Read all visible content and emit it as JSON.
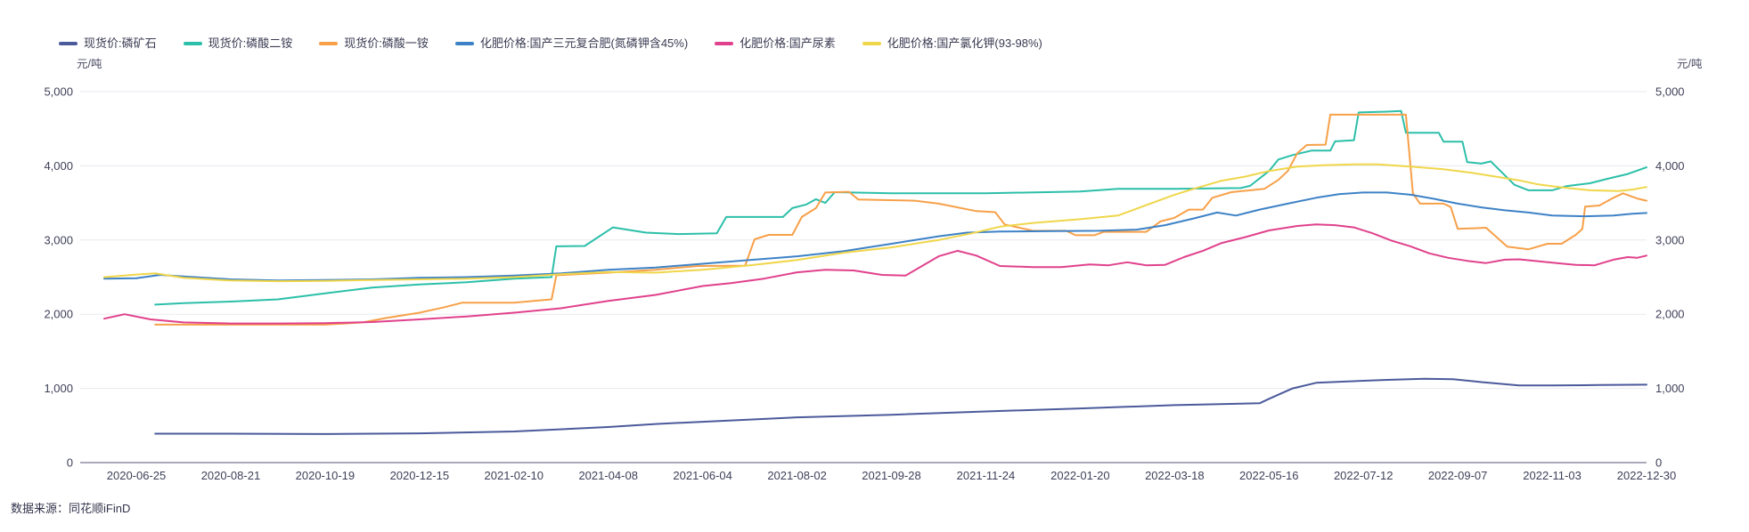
{
  "chart": {
    "unit_left": "元/吨",
    "unit_right": "元/吨",
    "footer": "数据来源：同花顺iFinD"
  },
  "chart_data": {
    "type": "line",
    "title": "",
    "xlabel": "",
    "ylabel": "元/吨",
    "grid": true,
    "legend_position": "top-left",
    "ylim": [
      0,
      5000
    ],
    "y_ticks": [
      0,
      1000,
      2000,
      3000,
      4000,
      5000
    ],
    "y_tick_labels": [
      "0",
      "1,000",
      "2,000",
      "3,000",
      "4,000",
      "5,000"
    ],
    "x_tick_labels": [
      "2020-06-25",
      "2020-08-21",
      "2020-10-19",
      "2020-12-15",
      "2021-02-10",
      "2021-04-08",
      "2021-06-04",
      "2021-08-02",
      "2021-09-28",
      "2021-11-24",
      "2022-01-20",
      "2022-03-18",
      "2022-05-16",
      "2022-07-12",
      "2022-09-07",
      "2022-11-03",
      "2022-12-30"
    ],
    "x_index_range": [
      0,
      32
    ],
    "note": "points are [x_index, price_yuan_per_ton]; x_index 0..32 maps linearly to dates 2020-06-25..2022-12-30, ticks at even indices",
    "series": [
      {
        "name": "现货价:磷矿石",
        "color": "#4b5a9b",
        "points": [
          [
            0.4,
            390
          ],
          [
            2,
            390
          ],
          [
            4,
            385
          ],
          [
            6,
            395
          ],
          [
            8,
            420
          ],
          [
            10,
            480
          ],
          [
            11,
            520
          ],
          [
            12,
            550
          ],
          [
            14,
            610
          ],
          [
            16,
            645
          ],
          [
            18,
            690
          ],
          [
            20,
            730
          ],
          [
            22,
            775
          ],
          [
            23.8,
            800
          ],
          [
            24,
            860
          ],
          [
            24.5,
            1000
          ],
          [
            25,
            1075
          ],
          [
            25.5,
            1090
          ],
          [
            26.5,
            1115
          ],
          [
            27.3,
            1130
          ],
          [
            27.9,
            1125
          ],
          [
            28.5,
            1085
          ],
          [
            29.3,
            1040
          ],
          [
            30,
            1040
          ],
          [
            31,
            1045
          ],
          [
            32,
            1050
          ]
        ]
      },
      {
        "name": "现货价:磷酸二铵",
        "color": "#2cbfa9",
        "points": [
          [
            0.4,
            2130
          ],
          [
            1,
            2150
          ],
          [
            2,
            2170
          ],
          [
            3,
            2200
          ],
          [
            4,
            2280
          ],
          [
            5,
            2360
          ],
          [
            6,
            2400
          ],
          [
            7,
            2430
          ],
          [
            8,
            2480
          ],
          [
            8.8,
            2500
          ],
          [
            8.9,
            2915
          ],
          [
            9.5,
            2920
          ],
          [
            10.1,
            3170
          ],
          [
            10.8,
            3100
          ],
          [
            11.5,
            3080
          ],
          [
            12.3,
            3090
          ],
          [
            12.5,
            3310
          ],
          [
            13.7,
            3310
          ],
          [
            13.9,
            3430
          ],
          [
            14.2,
            3480
          ],
          [
            14.4,
            3550
          ],
          [
            14.6,
            3500
          ],
          [
            14.8,
            3645
          ],
          [
            16,
            3630
          ],
          [
            18,
            3630
          ],
          [
            20,
            3655
          ],
          [
            20.8,
            3690
          ],
          [
            22,
            3690
          ],
          [
            23.4,
            3700
          ],
          [
            23.6,
            3730
          ],
          [
            24,
            3930
          ],
          [
            24.2,
            4085
          ],
          [
            24.5,
            4145
          ],
          [
            24.9,
            4205
          ],
          [
            25.3,
            4205
          ],
          [
            25.4,
            4330
          ],
          [
            25.8,
            4345
          ],
          [
            25.9,
            4720
          ],
          [
            26.5,
            4730
          ],
          [
            26.8,
            4740
          ],
          [
            26.9,
            4445
          ],
          [
            27.6,
            4445
          ],
          [
            27.7,
            4325
          ],
          [
            28.1,
            4325
          ],
          [
            28.2,
            4050
          ],
          [
            28.5,
            4030
          ],
          [
            28.7,
            4060
          ],
          [
            29.2,
            3745
          ],
          [
            29.5,
            3670
          ],
          [
            30,
            3670
          ],
          [
            30.3,
            3725
          ],
          [
            30.8,
            3765
          ],
          [
            31.2,
            3830
          ],
          [
            31.6,
            3890
          ],
          [
            32,
            3980
          ]
        ]
      },
      {
        "name": "现货价:磷酸一铵",
        "color": "#f7a049",
        "points": [
          [
            0.4,
            1860
          ],
          [
            2,
            1860
          ],
          [
            4,
            1860
          ],
          [
            4.8,
            1890
          ],
          [
            5.3,
            1950
          ],
          [
            6,
            2020
          ],
          [
            6.5,
            2090
          ],
          [
            6.9,
            2155
          ],
          [
            8,
            2155
          ],
          [
            8.8,
            2200
          ],
          [
            8.9,
            2525
          ],
          [
            10,
            2560
          ],
          [
            11,
            2600
          ],
          [
            11.9,
            2650
          ],
          [
            12.9,
            2655
          ],
          [
            13.1,
            3010
          ],
          [
            13.4,
            3070
          ],
          [
            13.9,
            3070
          ],
          [
            14.1,
            3310
          ],
          [
            14.4,
            3430
          ],
          [
            14.6,
            3640
          ],
          [
            15.1,
            3650
          ],
          [
            15.3,
            3545
          ],
          [
            16.5,
            3530
          ],
          [
            17,
            3490
          ],
          [
            17.8,
            3390
          ],
          [
            18.2,
            3375
          ],
          [
            18.4,
            3210
          ],
          [
            19,
            3125
          ],
          [
            19.7,
            3125
          ],
          [
            19.9,
            3065
          ],
          [
            20.3,
            3065
          ],
          [
            20.5,
            3110
          ],
          [
            21.4,
            3110
          ],
          [
            21.7,
            3250
          ],
          [
            22,
            3300
          ],
          [
            22.3,
            3410
          ],
          [
            22.6,
            3410
          ],
          [
            22.8,
            3570
          ],
          [
            23.2,
            3645
          ],
          [
            23.9,
            3690
          ],
          [
            24.2,
            3810
          ],
          [
            24.4,
            3930
          ],
          [
            24.6,
            4170
          ],
          [
            24.8,
            4280
          ],
          [
            25.2,
            4285
          ],
          [
            25.3,
            4690
          ],
          [
            26.9,
            4690
          ],
          [
            27.05,
            3630
          ],
          [
            27.2,
            3490
          ],
          [
            27.7,
            3490
          ],
          [
            27.85,
            3445
          ],
          [
            28,
            3150
          ],
          [
            28.6,
            3165
          ],
          [
            29.05,
            2910
          ],
          [
            29.5,
            2875
          ],
          [
            29.9,
            2950
          ],
          [
            30.2,
            2950
          ],
          [
            30.5,
            3070
          ],
          [
            30.64,
            3150
          ],
          [
            30.7,
            3450
          ],
          [
            31,
            3465
          ],
          [
            31.3,
            3570
          ],
          [
            31.5,
            3630
          ],
          [
            31.8,
            3560
          ],
          [
            32,
            3530
          ]
        ]
      },
      {
        "name": "化肥价格:国产三元复合肥(氮磷钾含45%)",
        "color": "#3d82c6",
        "points": [
          [
            -0.68,
            2480
          ],
          [
            0,
            2485
          ],
          [
            0.5,
            2530
          ],
          [
            1,
            2510
          ],
          [
            2,
            2470
          ],
          [
            3,
            2455
          ],
          [
            4,
            2460
          ],
          [
            5,
            2470
          ],
          [
            6,
            2490
          ],
          [
            7,
            2500
          ],
          [
            8,
            2520
          ],
          [
            9,
            2550
          ],
          [
            10,
            2600
          ],
          [
            11,
            2630
          ],
          [
            12,
            2680
          ],
          [
            13,
            2730
          ],
          [
            14,
            2780
          ],
          [
            15,
            2850
          ],
          [
            16,
            2950
          ],
          [
            17,
            3050
          ],
          [
            17.6,
            3100
          ],
          [
            18.3,
            3115
          ],
          [
            19.5,
            3120
          ],
          [
            20.4,
            3125
          ],
          [
            21.2,
            3140
          ],
          [
            21.8,
            3200
          ],
          [
            22.4,
            3290
          ],
          [
            22.9,
            3370
          ],
          [
            23.3,
            3330
          ],
          [
            23.8,
            3410
          ],
          [
            24.4,
            3490
          ],
          [
            25,
            3570
          ],
          [
            25.5,
            3620
          ],
          [
            26,
            3640
          ],
          [
            26.5,
            3640
          ],
          [
            27,
            3610
          ],
          [
            27.5,
            3555
          ],
          [
            28,
            3490
          ],
          [
            28.5,
            3440
          ],
          [
            29,
            3400
          ],
          [
            29.5,
            3370
          ],
          [
            30,
            3330
          ],
          [
            30.7,
            3320
          ],
          [
            31.3,
            3330
          ],
          [
            31.7,
            3355
          ],
          [
            32,
            3365
          ]
        ]
      },
      {
        "name": "化肥价格:国产尿素",
        "color": "#e0418c",
        "points": [
          [
            -0.68,
            1940
          ],
          [
            -0.25,
            2000
          ],
          [
            0.3,
            1930
          ],
          [
            1,
            1890
          ],
          [
            2,
            1875
          ],
          [
            3,
            1875
          ],
          [
            4,
            1880
          ],
          [
            5,
            1895
          ],
          [
            6,
            1930
          ],
          [
            7,
            1970
          ],
          [
            8,
            2020
          ],
          [
            9,
            2080
          ],
          [
            10,
            2180
          ],
          [
            11,
            2260
          ],
          [
            12,
            2380
          ],
          [
            12.6,
            2420
          ],
          [
            13.3,
            2480
          ],
          [
            14,
            2565
          ],
          [
            14.6,
            2600
          ],
          [
            15.2,
            2590
          ],
          [
            15.8,
            2530
          ],
          [
            16.3,
            2520
          ],
          [
            17,
            2780
          ],
          [
            17.4,
            2855
          ],
          [
            17.8,
            2790
          ],
          [
            18.3,
            2650
          ],
          [
            19,
            2635
          ],
          [
            19.6,
            2635
          ],
          [
            20.2,
            2670
          ],
          [
            20.6,
            2660
          ],
          [
            21,
            2700
          ],
          [
            21.4,
            2660
          ],
          [
            21.8,
            2665
          ],
          [
            22.2,
            2770
          ],
          [
            22.6,
            2855
          ],
          [
            23,
            2960
          ],
          [
            23.5,
            3040
          ],
          [
            24,
            3130
          ],
          [
            24.6,
            3190
          ],
          [
            25,
            3210
          ],
          [
            25.4,
            3200
          ],
          [
            25.8,
            3170
          ],
          [
            26.2,
            3090
          ],
          [
            26.6,
            2990
          ],
          [
            27,
            2915
          ],
          [
            27.4,
            2820
          ],
          [
            27.8,
            2760
          ],
          [
            28.2,
            2720
          ],
          [
            28.6,
            2690
          ],
          [
            29,
            2735
          ],
          [
            29.3,
            2740
          ],
          [
            29.7,
            2715
          ],
          [
            30.1,
            2690
          ],
          [
            30.5,
            2665
          ],
          [
            30.9,
            2660
          ],
          [
            31.3,
            2735
          ],
          [
            31.6,
            2770
          ],
          [
            31.8,
            2760
          ],
          [
            32,
            2790
          ]
        ]
      },
      {
        "name": "化肥价格:国产氯化钾(93-98%)",
        "color": "#f0d64a",
        "points": [
          [
            -0.68,
            2500
          ],
          [
            0,
            2535
          ],
          [
            0.4,
            2550
          ],
          [
            1,
            2490
          ],
          [
            2,
            2455
          ],
          [
            3,
            2445
          ],
          [
            4,
            2450
          ],
          [
            5,
            2460
          ],
          [
            6,
            2470
          ],
          [
            7,
            2480
          ],
          [
            8,
            2500
          ],
          [
            9,
            2540
          ],
          [
            10,
            2570
          ],
          [
            11,
            2560
          ],
          [
            12,
            2600
          ],
          [
            13,
            2660
          ],
          [
            14,
            2730
          ],
          [
            15,
            2830
          ],
          [
            16,
            2900
          ],
          [
            17,
            3000
          ],
          [
            17.7,
            3090
          ],
          [
            18.3,
            3180
          ],
          [
            19,
            3230
          ],
          [
            20,
            3280
          ],
          [
            20.8,
            3330
          ],
          [
            21.4,
            3470
          ],
          [
            22,
            3610
          ],
          [
            22.4,
            3690
          ],
          [
            23,
            3800
          ],
          [
            23.5,
            3855
          ],
          [
            24,
            3930
          ],
          [
            24.6,
            3990
          ],
          [
            25.2,
            4010
          ],
          [
            25.8,
            4020
          ],
          [
            26.3,
            4020
          ],
          [
            27,
            3990
          ],
          [
            27.7,
            3955
          ],
          [
            28.3,
            3905
          ],
          [
            28.8,
            3855
          ],
          [
            29.3,
            3805
          ],
          [
            29.7,
            3750
          ],
          [
            30.2,
            3710
          ],
          [
            30.8,
            3670
          ],
          [
            31.4,
            3660
          ],
          [
            31.7,
            3680
          ],
          [
            32,
            3715
          ]
        ]
      }
    ]
  }
}
